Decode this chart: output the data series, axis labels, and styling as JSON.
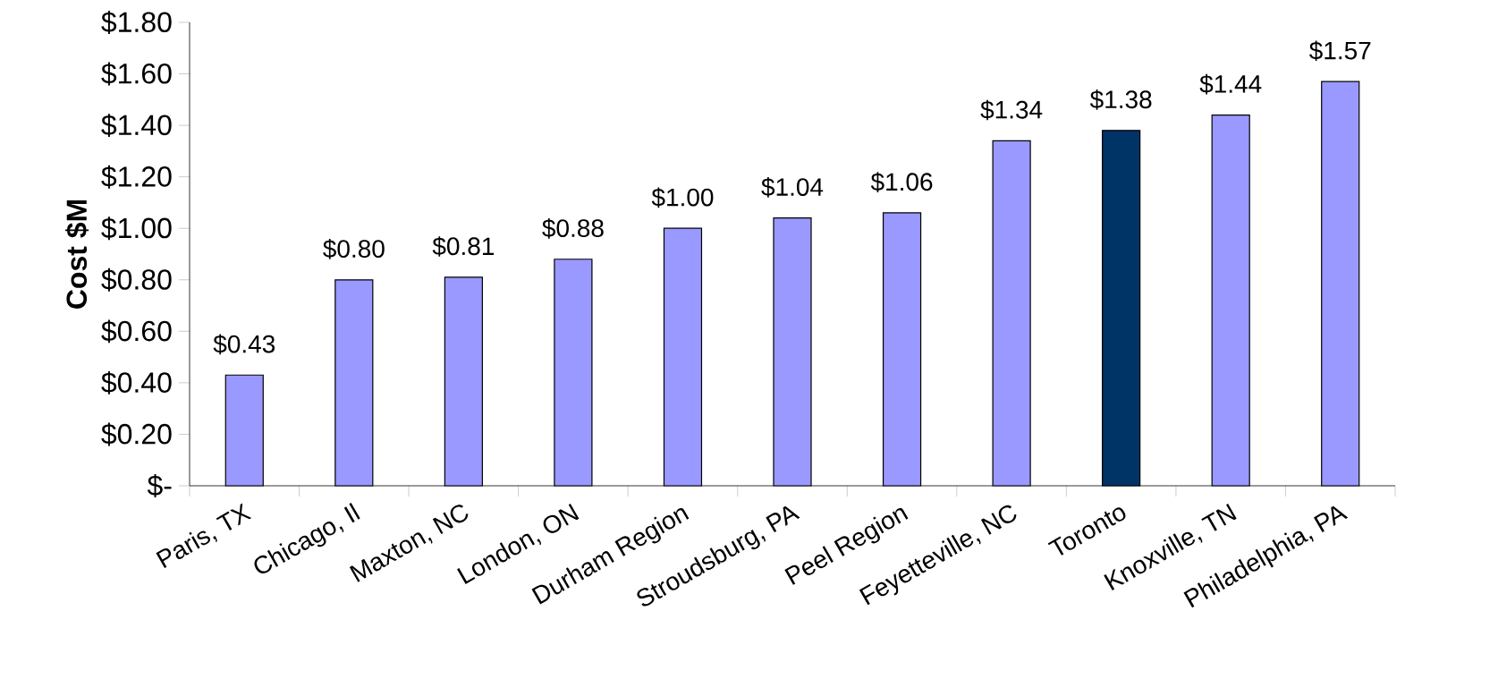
{
  "chart_data": {
    "type": "bar",
    "ylabel": "Cost $M",
    "categories": [
      "Paris, TX",
      "Chicago, Il",
      "Maxton, NC",
      "London, ON",
      "Durham Region",
      "Stroudsburg, PA",
      "Peel Region",
      "Feyetteville, NC",
      "Toronto",
      "Knoxville, TN",
      "Philadelphia, PA"
    ],
    "values": [
      0.43,
      0.8,
      0.81,
      0.88,
      1.0,
      1.04,
      1.06,
      1.34,
      1.38,
      1.44,
      1.57
    ],
    "value_labels": [
      "$0.43",
      "$0.80",
      "$0.81",
      "$0.88",
      "$1.00",
      "$1.04",
      "$1.06",
      "$1.34",
      "$1.38",
      "$1.44",
      "$1.57"
    ],
    "colors": [
      "#9999ff",
      "#9999ff",
      "#9999ff",
      "#9999ff",
      "#9999ff",
      "#9999ff",
      "#9999ff",
      "#9999ff",
      "#003366",
      "#9999ff",
      "#9999ff"
    ],
    "ylim": [
      0,
      1.8
    ],
    "yticks": [
      {
        "value": 0,
        "label": "$-"
      },
      {
        "value": 0.2,
        "label": "$0.20"
      },
      {
        "value": 0.4,
        "label": "$0.40"
      },
      {
        "value": 0.6,
        "label": "$0.60"
      },
      {
        "value": 0.8,
        "label": "$0.80"
      },
      {
        "value": 1.0,
        "label": "$1.00"
      },
      {
        "value": 1.2,
        "label": "$1.20"
      },
      {
        "value": 1.4,
        "label": "$1.40"
      },
      {
        "value": 1.6,
        "label": "$1.60"
      },
      {
        "value": 1.8,
        "label": "$1.80"
      }
    ],
    "grid": false
  }
}
